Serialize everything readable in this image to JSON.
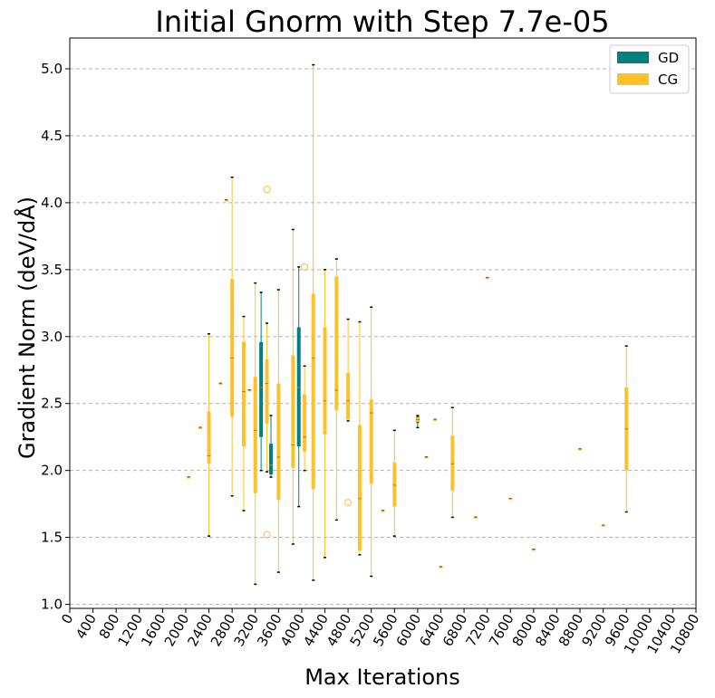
{
  "chart_data": {
    "type": "box",
    "title": "Initial Gnorm with Step 7.7e-05",
    "xlabel": "Max Iterations",
    "ylabel": "Gradient Norm (deV/dÅ)",
    "xlim": [
      0,
      10800
    ],
    "ylim": [
      0.97,
      5.23
    ],
    "x_ticks": [
      "0",
      "400",
      "800",
      "1200",
      "1600",
      "2000",
      "2400",
      "2800",
      "3200",
      "3600",
      "4000",
      "4400",
      "4800",
      "5200",
      "5600",
      "6000",
      "6400",
      "6800",
      "7200",
      "7600",
      "8000",
      "8400",
      "8800",
      "9200",
      "9600",
      "10000",
      "10400",
      "10800"
    ],
    "y_ticks": [
      "1.0",
      "1.5",
      "2.0",
      "2.5",
      "3.0",
      "3.5",
      "4.0",
      "4.5",
      "5.0"
    ],
    "y_tick_values": [
      1.0,
      1.5,
      2.0,
      2.5,
      3.0,
      3.5,
      4.0,
      4.5,
      5.0
    ],
    "grid": "horizontal dashed",
    "legend_position": "top-right",
    "colors": {
      "GD": "#008080",
      "CG": "#ffc12a",
      "cap": "#000000",
      "median": "#e07000"
    },
    "series": [
      {
        "name": "GD",
        "boxes": [
          {
            "x": 3300,
            "min": 2.0,
            "q1": 2.25,
            "median": 2.62,
            "q3": 2.96,
            "max": 3.33,
            "outliers": []
          },
          {
            "x": 3470,
            "min": 1.95,
            "q1": 1.97,
            "median": 2.04,
            "q3": 2.2,
            "max": 2.41,
            "outliers": []
          },
          {
            "x": 3950,
            "min": 1.73,
            "q1": 2.18,
            "median": 2.62,
            "q3": 3.07,
            "max": 3.52,
            "outliers": []
          },
          {
            "x": 6000,
            "min": 2.32,
            "q1": 2.36,
            "median": 2.38,
            "q3": 2.4,
            "max": 2.41,
            "outliers": []
          }
        ]
      },
      {
        "name": "CG",
        "boxes": [
          {
            "x": 2050,
            "min": 1.95,
            "q1": 1.95,
            "median": 1.95,
            "q3": 1.95,
            "max": 1.95,
            "outliers": []
          },
          {
            "x": 2250,
            "min": 2.32,
            "q1": 2.32,
            "median": 2.32,
            "q3": 2.32,
            "max": 2.32,
            "outliers": []
          },
          {
            "x": 2400,
            "min": 1.51,
            "q1": 2.05,
            "median": 2.11,
            "q3": 2.44,
            "max": 3.02,
            "outliers": []
          },
          {
            "x": 2600,
            "min": 2.65,
            "q1": 2.65,
            "median": 2.65,
            "q3": 2.65,
            "max": 2.65,
            "outliers": []
          },
          {
            "x": 2700,
            "min": 4.02,
            "q1": 4.02,
            "median": 4.02,
            "q3": 4.02,
            "max": 4.02,
            "outliers": []
          },
          {
            "x": 2800,
            "min": 1.81,
            "q1": 2.4,
            "median": 2.84,
            "q3": 3.43,
            "max": 4.19,
            "outliers": []
          },
          {
            "x": 3000,
            "min": 1.7,
            "q1": 2.18,
            "median": 2.59,
            "q3": 2.96,
            "max": 3.15,
            "outliers": []
          },
          {
            "x": 3100,
            "min": 2.6,
            "q1": 2.6,
            "median": 2.6,
            "q3": 2.6,
            "max": 2.6,
            "outliers": []
          },
          {
            "x": 3200,
            "min": 1.15,
            "q1": 1.83,
            "median": 2.3,
            "q3": 2.7,
            "max": 3.4,
            "outliers": []
          },
          {
            "x": 3400,
            "min": 1.99,
            "q1": 2.35,
            "median": 2.65,
            "q3": 2.83,
            "max": 3.1,
            "outliers": [
              4.1,
              1.52
            ]
          },
          {
            "x": 3600,
            "min": 1.24,
            "q1": 1.78,
            "median": 2.1,
            "q3": 2.65,
            "max": 3.35,
            "outliers": []
          },
          {
            "x": 3850,
            "min": 1.45,
            "q1": 2.02,
            "median": 2.19,
            "q3": 2.86,
            "max": 3.8,
            "outliers": []
          },
          {
            "x": 4050,
            "min": 2.0,
            "q1": 2.14,
            "median": 2.25,
            "q3": 2.57,
            "max": 2.78,
            "outliers": [
              3.52
            ]
          },
          {
            "x": 4200,
            "min": 1.18,
            "q1": 1.86,
            "median": 2.84,
            "q3": 3.32,
            "max": 5.03,
            "outliers": []
          },
          {
            "x": 4400,
            "min": 1.35,
            "q1": 2.27,
            "median": 2.52,
            "q3": 3.07,
            "max": 3.5,
            "outliers": []
          },
          {
            "x": 4600,
            "min": 1.63,
            "q1": 2.45,
            "median": 2.6,
            "q3": 3.45,
            "max": 3.58,
            "outliers": []
          },
          {
            "x": 4800,
            "min": 2.37,
            "q1": 2.38,
            "median": 2.52,
            "q3": 2.73,
            "max": 3.13,
            "outliers": [
              1.76
            ]
          },
          {
            "x": 5000,
            "min": 1.37,
            "q1": 1.4,
            "median": 1.79,
            "q3": 2.34,
            "max": 3.11,
            "outliers": []
          },
          {
            "x": 5200,
            "min": 1.21,
            "q1": 1.9,
            "median": 2.43,
            "q3": 2.53,
            "max": 3.22,
            "outliers": []
          },
          {
            "x": 5400,
            "min": 1.7,
            "q1": 1.7,
            "median": 1.7,
            "q3": 1.7,
            "max": 1.7,
            "outliers": []
          },
          {
            "x": 5600,
            "min": 1.51,
            "q1": 1.73,
            "median": 1.89,
            "q3": 2.06,
            "max": 2.3,
            "outliers": []
          },
          {
            "x": 6000,
            "min": 2.36,
            "q1": 2.36,
            "median": 2.38,
            "q3": 2.4,
            "max": 2.4,
            "outliers": []
          },
          {
            "x": 6150,
            "min": 2.1,
            "q1": 2.1,
            "median": 2.1,
            "q3": 2.1,
            "max": 2.1,
            "outliers": []
          },
          {
            "x": 6300,
            "min": 2.38,
            "q1": 2.38,
            "median": 2.38,
            "q3": 2.38,
            "max": 2.38,
            "outliers": []
          },
          {
            "x": 6400,
            "min": 1.28,
            "q1": 1.28,
            "median": 1.28,
            "q3": 1.28,
            "max": 1.28,
            "outliers": []
          },
          {
            "x": 6600,
            "min": 1.65,
            "q1": 1.85,
            "median": 2.05,
            "q3": 2.26,
            "max": 2.47,
            "outliers": []
          },
          {
            "x": 7000,
            "min": 1.65,
            "q1": 1.65,
            "median": 1.65,
            "q3": 1.65,
            "max": 1.65,
            "outliers": []
          },
          {
            "x": 7200,
            "min": 3.44,
            "q1": 3.44,
            "median": 3.44,
            "q3": 3.44,
            "max": 3.44,
            "outliers": []
          },
          {
            "x": 7600,
            "min": 1.79,
            "q1": 1.79,
            "median": 1.79,
            "q3": 1.79,
            "max": 1.79,
            "outliers": []
          },
          {
            "x": 8000,
            "min": 1.41,
            "q1": 1.41,
            "median": 1.41,
            "q3": 1.41,
            "max": 1.41,
            "outliers": []
          },
          {
            "x": 8800,
            "min": 2.16,
            "q1": 2.16,
            "median": 2.16,
            "q3": 2.16,
            "max": 2.16,
            "outliers": []
          },
          {
            "x": 9200,
            "min": 1.59,
            "q1": 1.59,
            "median": 1.59,
            "q3": 1.59,
            "max": 1.59,
            "outliers": []
          },
          {
            "x": 9600,
            "min": 1.69,
            "q1": 2.0,
            "median": 2.31,
            "q3": 2.62,
            "max": 2.93,
            "outliers": []
          }
        ]
      }
    ]
  }
}
